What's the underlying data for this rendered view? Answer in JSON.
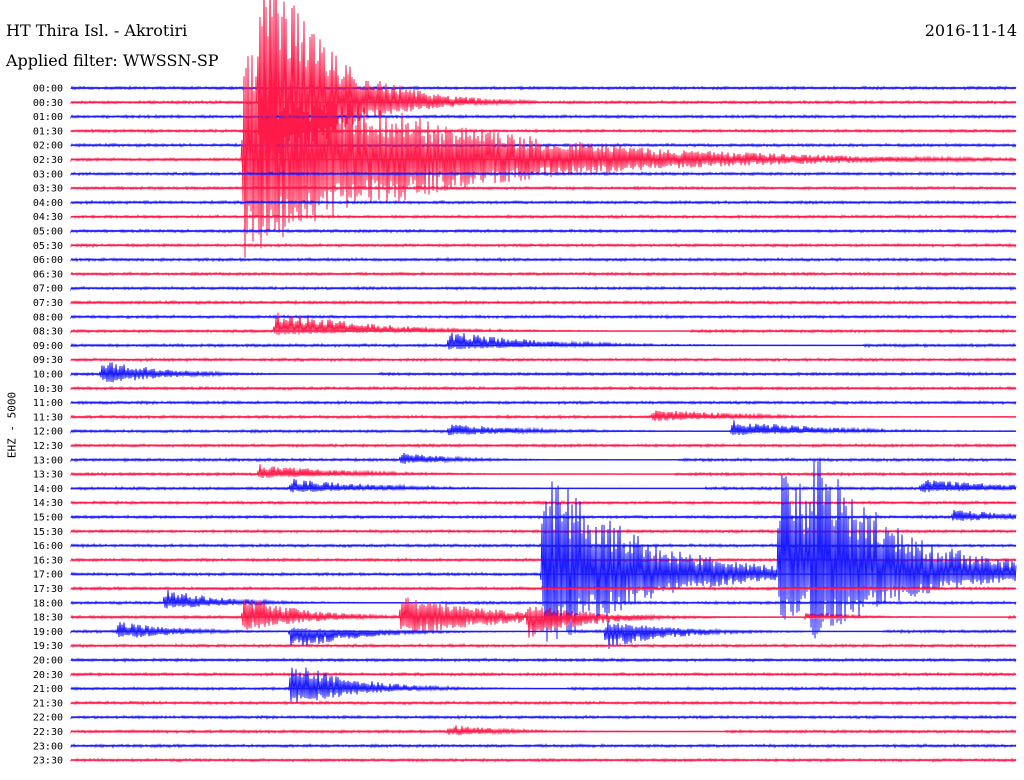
{
  "header": {
    "station": "HT Thira Isl. - Akrotiri",
    "filter": "Applied filter: WWSSN-SP",
    "date": "2016-11-14"
  },
  "y_axis_label": "EHZ - 5000",
  "colors": {
    "odd_trace": "#1a1aff",
    "even_trace": "#ff1a4a",
    "text": "#000000"
  },
  "chart_data": {
    "type": "line",
    "title": "HT Thira Isl. - Akrotiri",
    "channel": "EHZ - 5000",
    "filter": "WWSSN-SP",
    "date": "2016-11-14",
    "rows": [
      "00:00",
      "00:30",
      "01:00",
      "01:30",
      "02:00",
      "02:30",
      "03:00",
      "03:30",
      "04:00",
      "04:30",
      "05:00",
      "05:30",
      "06:00",
      "06:30",
      "07:00",
      "07:30",
      "08:00",
      "08:30",
      "09:00",
      "09:30",
      "10:00",
      "10:30",
      "11:00",
      "11:30",
      "12:00",
      "12:30",
      "13:00",
      "13:30",
      "14:00",
      "14:30",
      "15:00",
      "15:30",
      "16:00",
      "16:30",
      "17:00",
      "17:30",
      "18:00",
      "18:30",
      "19:00",
      "19:30",
      "20:00",
      "20:30",
      "21:00",
      "21:30",
      "22:00",
      "22:30",
      "23:00",
      "23:30"
    ],
    "row_minutes": 30,
    "events": [
      {
        "row": 1,
        "minute": 6.0,
        "up": 12.0,
        "down": 8.0,
        "decay": 1.0
      },
      {
        "row": 5,
        "minute": 5.5,
        "up": 8.0,
        "down": 7.0,
        "decay": 3.0
      },
      {
        "row": 17,
        "minute": 6.5,
        "up": 1.5,
        "down": 0.3,
        "decay": 1.5
      },
      {
        "row": 18,
        "minute": 12.0,
        "up": 1.0,
        "down": 0.3,
        "decay": 1.5
      },
      {
        "row": 20,
        "minute": 1.0,
        "up": 1.0,
        "down": 0.8,
        "decay": 1.0
      },
      {
        "row": 24,
        "minute": 12.0,
        "up": 0.5,
        "down": 0.3,
        "decay": 1.5
      },
      {
        "row": 24,
        "minute": 21.0,
        "up": 0.8,
        "down": 0.3,
        "decay": 1.5
      },
      {
        "row": 23,
        "minute": 18.5,
        "up": 0.6,
        "down": 0.3,
        "decay": 1.5
      },
      {
        "row": 27,
        "minute": 6.0,
        "up": 0.7,
        "down": 0.3,
        "decay": 1.5
      },
      {
        "row": 26,
        "minute": 10.5,
        "up": 0.5,
        "down": 0.3,
        "decay": 1.0
      },
      {
        "row": 28,
        "minute": 7.0,
        "up": 0.7,
        "down": 0.3,
        "decay": 1.5
      },
      {
        "row": 28,
        "minute": 27.0,
        "up": 0.7,
        "down": 0.3,
        "decay": 1.5
      },
      {
        "row": 30,
        "minute": 28.0,
        "up": 0.5,
        "down": 0.3,
        "decay": 1.5
      },
      {
        "row": 34,
        "minute": 15.0,
        "up": 8.0,
        "down": 6.0,
        "decay": 1.5
      },
      {
        "row": 34,
        "minute": 22.5,
        "up": 8.0,
        "down": 4.0,
        "decay": 1.5
      },
      {
        "row": 34,
        "minute": 23.5,
        "up": 9.0,
        "down": 5.0,
        "decay": 1.5
      },
      {
        "row": 36,
        "minute": 3.0,
        "up": 1.0,
        "down": 0.5,
        "decay": 1.0
      },
      {
        "row": 37,
        "minute": 5.5,
        "up": 1.5,
        "down": 1.0,
        "decay": 1.0
      },
      {
        "row": 37,
        "minute": 10.5,
        "up": 1.5,
        "down": 1.5,
        "decay": 1.5
      },
      {
        "row": 37,
        "minute": 21.0,
        "up": 1.0,
        "down": 0.5,
        "decay": 1.0
      },
      {
        "row": 38,
        "minute": 1.5,
        "up": 0.7,
        "down": 0.6,
        "decay": 1.0
      },
      {
        "row": 37,
        "minute": 14.5,
        "up": 1.0,
        "down": 1.5,
        "decay": 1.0
      },
      {
        "row": 38,
        "minute": 7.0,
        "up": 0.3,
        "down": 1.5,
        "decay": 1.0
      },
      {
        "row": 38,
        "minute": 17.0,
        "up": 0.8,
        "down": 1.3,
        "decay": 1.0
      },
      {
        "row": 42,
        "minute": 7.0,
        "up": 2.0,
        "down": 1.3,
        "decay": 1.0
      },
      {
        "row": 45,
        "minute": 12.0,
        "up": 0.5,
        "down": 0.3,
        "decay": 1.0
      }
    ]
  }
}
